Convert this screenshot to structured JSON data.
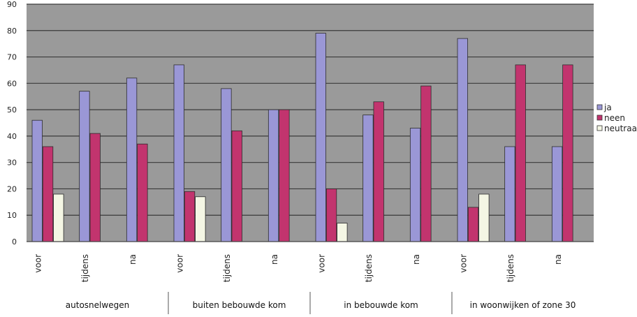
{
  "chart_data": {
    "type": "bar",
    "groups": [
      {
        "label": "autosnelwegen",
        "categories": [
          "voor",
          "tijdens",
          "na"
        ]
      },
      {
        "label": "buiten bebouwde kom",
        "categories": [
          "voor",
          "tijdens",
          "na"
        ]
      },
      {
        "label": "in bebouwde kom",
        "categories": [
          "voor",
          "tijdens",
          "na"
        ]
      },
      {
        "label": "in woonwijken of zone 30",
        "categories": [
          "voor",
          "tijdens",
          "na"
        ]
      }
    ],
    "series": [
      {
        "name": "ja",
        "color": "#9a97d6",
        "values": [
          46,
          57,
          62,
          67,
          58,
          50,
          79,
          48,
          43,
          77,
          36,
          36
        ]
      },
      {
        "name": "neen",
        "color": "#c2346e",
        "values": [
          36,
          41,
          37,
          19,
          42,
          50,
          20,
          53,
          59,
          13,
          67,
          67
        ]
      },
      {
        "name": "neutraal",
        "color": "#f4f6e4",
        "values": [
          18,
          0,
          0,
          17,
          0,
          0,
          7,
          0,
          0,
          18,
          0,
          0
        ]
      }
    ],
    "ylim": [
      0,
      90
    ],
    "yticks": [
      0,
      10,
      20,
      30,
      40,
      50,
      60,
      70,
      80,
      90
    ],
    "grid": true,
    "legend_position": "right"
  }
}
